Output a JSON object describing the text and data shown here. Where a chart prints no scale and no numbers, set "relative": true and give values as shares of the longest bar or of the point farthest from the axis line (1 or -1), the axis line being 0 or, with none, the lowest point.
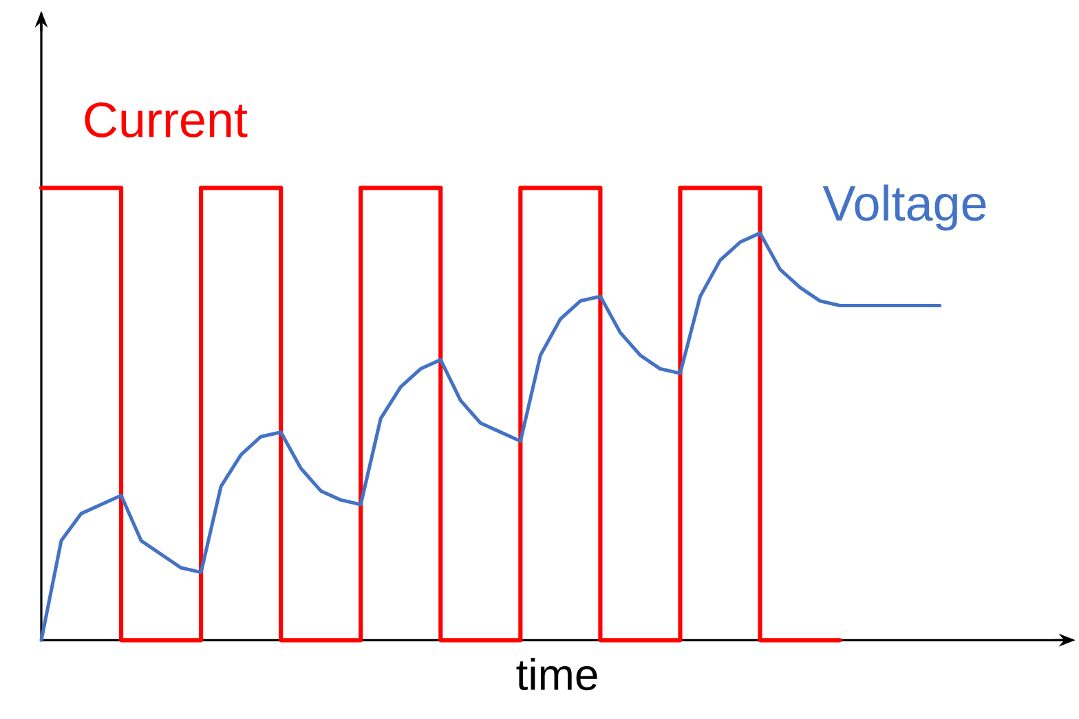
{
  "chart_data": {
    "type": "line",
    "relative": true,
    "xlabel": "time",
    "legend": false,
    "categories": [
      null,
      null,
      null,
      null,
      null,
      null,
      null,
      null,
      null,
      null,
      null,
      null,
      null,
      null,
      null,
      null,
      null,
      null,
      null,
      null,
      null,
      null,
      null,
      null,
      null,
      null,
      null,
      null,
      null,
      null,
      null,
      null,
      null,
      null,
      null,
      null,
      null,
      null,
      null,
      null,
      null,
      null,
      null,
      null,
      null,
      null
    ],
    "series": [
      {
        "name": "Current",
        "type": "step",
        "color": "#ff0000",
        "values": [
          1,
          1,
          1,
          1,
          0,
          0,
          0,
          0,
          1,
          1,
          1,
          1,
          0,
          0,
          0,
          0,
          1,
          1,
          1,
          1,
          0,
          0,
          0,
          0,
          1,
          1,
          1,
          1,
          0,
          0,
          0,
          0,
          1,
          1,
          1,
          1,
          0,
          0,
          0,
          0,
          0,
          null,
          null,
          null,
          null,
          null
        ]
      },
      {
        "name": "Voltage",
        "type": "line",
        "color": "#4472c4",
        "values": [
          0,
          0.22,
          0.28,
          0.3,
          0.32,
          0.22,
          0.19,
          0.16,
          0.15,
          0.34,
          0.41,
          0.45,
          0.46,
          0.38,
          0.33,
          0.31,
          0.3,
          0.49,
          0.56,
          0.6,
          0.62,
          0.53,
          0.48,
          0.46,
          0.44,
          0.63,
          0.71,
          0.75,
          0.76,
          0.68,
          0.63,
          0.6,
          0.59,
          0.76,
          0.84,
          0.88,
          0.9,
          0.82,
          0.78,
          0.75,
          0.74,
          0.74,
          0.74,
          0.74,
          0.74,
          0.74
        ]
      }
    ]
  }
}
